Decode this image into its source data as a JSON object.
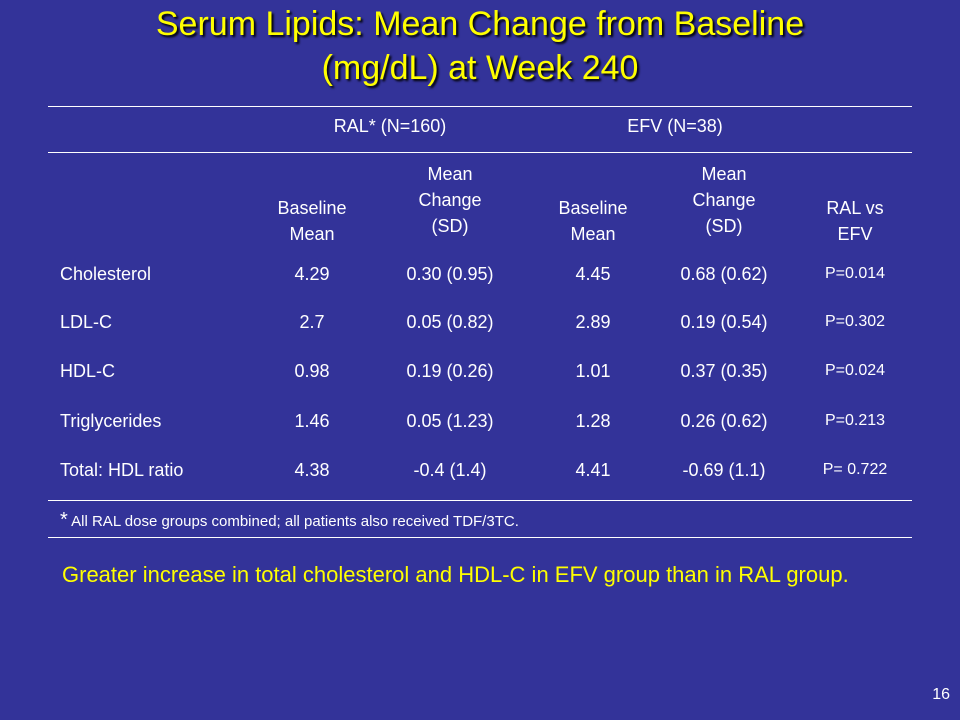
{
  "title": {
    "line1": "Serum Lipids: Mean Change from Baseline",
    "line2": "(mg/dL) at Week 240"
  },
  "groups": {
    "ral": "RAL* (N=160)",
    "efv": "EFV (N=38)"
  },
  "columns": {
    "ral_baseline": [
      "Baseline",
      "Mean"
    ],
    "ral_change": [
      "Mean",
      "Change",
      "(SD)"
    ],
    "efv_baseline": [
      "Baseline",
      "Mean"
    ],
    "efv_change": [
      "Mean",
      "Change",
      "(SD)"
    ],
    "pvalue": [
      "RAL vs",
      "EFV"
    ]
  },
  "rows": [
    {
      "label": "Cholesterol",
      "ral_baseline": "4.29",
      "ral_change": "0.30 (0.95)",
      "efv_baseline": "4.45",
      "efv_change": "0.68 (0.62)",
      "p": "P=0.014"
    },
    {
      "label": "LDL-C",
      "ral_baseline": "2.7",
      "ral_change": "0.05 (0.82)",
      "efv_baseline": "2.89",
      "efv_change": "0.19 (0.54)",
      "p": "P=0.302"
    },
    {
      "label": "HDL-C",
      "ral_baseline": "0.98",
      "ral_change": "0.19 (0.26)",
      "efv_baseline": "1.01",
      "efv_change": "0.37 (0.35)",
      "p": "P=0.024"
    },
    {
      "label": "Triglycerides",
      "ral_baseline": "1.46",
      "ral_change": "0.05 (1.23)",
      "efv_baseline": "1.28",
      "efv_change": "0.26 (0.62)",
      "p": "P=0.213"
    },
    {
      "label": "Total: HDL ratio",
      "ral_baseline": "4.38",
      "ral_change": "-0.4 (1.4)",
      "efv_baseline": "4.41",
      "efv_change": "-0.69 (1.1)",
      "p": "P= 0.722"
    }
  ],
  "footnote": {
    "star": "*",
    "text": "All RAL dose groups combined;  all patients also received TDF/3TC."
  },
  "conclusion": "Greater increase in total cholesterol and HDL-C in EFV group than in RAL group.",
  "page_number": "16",
  "colors": {
    "background": "#333399",
    "title": "#ffff00",
    "text": "#ffffff",
    "conclusion": "#ffff00"
  }
}
